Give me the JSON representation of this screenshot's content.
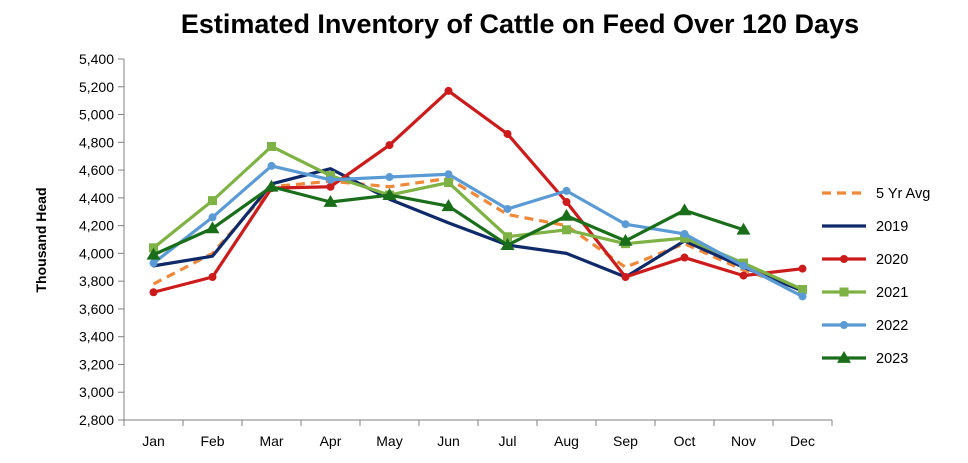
{
  "chart_data": {
    "type": "line",
    "title": "Estimated Inventory of Cattle on Feed Over 120 Days",
    "xlabel": "",
    "ylabel": "Thousand Head",
    "ylim": [
      2800,
      5400
    ],
    "ytick_step": 200,
    "categories": [
      "Jan",
      "Feb",
      "Mar",
      "Apr",
      "May",
      "Jun",
      "Jul",
      "Aug",
      "Sep",
      "Oct",
      "Nov",
      "Dec"
    ],
    "grid": false,
    "legend_position": "right",
    "series": [
      {
        "name": "5 Yr Avg",
        "color": "#f0883a",
        "dashed": true,
        "marker": "none",
        "values": [
          3780,
          4000,
          4480,
          4520,
          4480,
          4540,
          4280,
          4200,
          3900,
          4070,
          3880,
          3740
        ]
      },
      {
        "name": "2019",
        "color": "#0f2a6b",
        "dashed": false,
        "marker": "none",
        "values": [
          3910,
          3980,
          4500,
          4610,
          4390,
          4220,
          4060,
          4000,
          3830,
          4090,
          3900,
          3730
        ]
      },
      {
        "name": "2020",
        "color": "#cc1b1b",
        "dashed": false,
        "marker": "circle",
        "values": [
          3720,
          3830,
          4470,
          4480,
          4780,
          5170,
          4860,
          4370,
          3830,
          3970,
          3840,
          3890
        ]
      },
      {
        "name": "2021",
        "color": "#7fb244",
        "dashed": false,
        "marker": "square",
        "values": [
          4040,
          4380,
          4770,
          4560,
          4420,
          4510,
          4120,
          4170,
          4070,
          4110,
          3930,
          3740
        ]
      },
      {
        "name": "2022",
        "color": "#5b9bd5",
        "dashed": false,
        "marker": "circle",
        "values": [
          3930,
          4260,
          4630,
          4530,
          4550,
          4570,
          4320,
          4450,
          4210,
          4140,
          3910,
          3690
        ]
      },
      {
        "name": "2023",
        "color": "#1a6e1a",
        "dashed": false,
        "marker": "triangle",
        "values": [
          3990,
          4180,
          4480,
          4370,
          4420,
          4340,
          4060,
          4270,
          4090,
          4310,
          4170,
          null
        ]
      }
    ]
  }
}
